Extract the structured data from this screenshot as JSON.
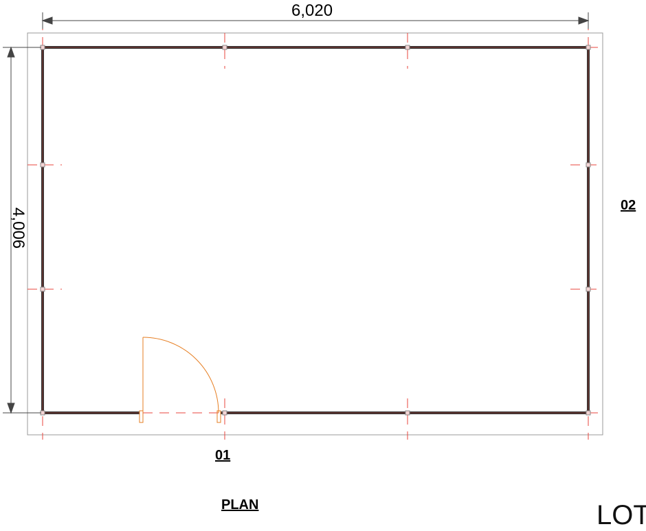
{
  "drawing": {
    "width_dimension": "6,020",
    "height_dimension": "4,006",
    "elevation_marker_front": "01",
    "elevation_marker_side": "02",
    "title": "PLAN",
    "partial_title_text": "LOT"
  },
  "colors": {
    "wall": "#4a4a4a",
    "wall_accent": "#c0392b",
    "grid_line": "#e8453c",
    "door": "#e67e22",
    "dimension": "#444444",
    "border": "#999999"
  }
}
